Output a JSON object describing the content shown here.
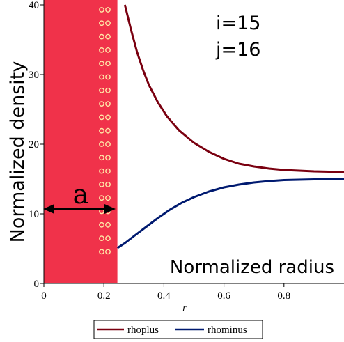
{
  "chart_data": {
    "type": "line",
    "xlabel": "r",
    "ylabel": "Normalized density",
    "xlim": [
      0,
      1
    ],
    "ylim": [
      0,
      40
    ],
    "x_ticks": [
      "0",
      "0.2",
      "0.4",
      "0.6",
      "0.8"
    ],
    "y_ticks": [
      "0",
      "10",
      "20",
      "30",
      "40"
    ],
    "annotations": {
      "i_label": "i=15",
      "j_label": "j=16",
      "radius_label": "Normalized radius",
      "gap_label": "a"
    },
    "shaded_region": {
      "x_from": 0,
      "x_to": 0.245,
      "color": "#f0324a"
    },
    "series": [
      {
        "name": "rhoplus",
        "color": "#7a0010",
        "x": [
          0.27,
          0.29,
          0.31,
          0.33,
          0.35,
          0.38,
          0.41,
          0.45,
          0.5,
          0.55,
          0.6,
          0.65,
          0.7,
          0.75,
          0.8,
          0.85,
          0.9,
          0.95,
          1.0
        ],
        "y": [
          40,
          36.5,
          33.3,
          30.7,
          28.5,
          26.0,
          24.0,
          22.0,
          20.2,
          18.9,
          17.9,
          17.2,
          16.8,
          16.5,
          16.3,
          16.2,
          16.1,
          16.05,
          16.0
        ]
      },
      {
        "name": "rhominus",
        "color": "#001a70",
        "x": [
          0.245,
          0.27,
          0.3,
          0.34,
          0.38,
          0.42,
          0.46,
          0.5,
          0.55,
          0.6,
          0.65,
          0.7,
          0.75,
          0.8,
          0.85,
          0.9,
          0.95,
          1.0
        ],
        "y": [
          5.1,
          5.8,
          6.8,
          8.1,
          9.4,
          10.6,
          11.6,
          12.4,
          13.2,
          13.8,
          14.2,
          14.5,
          14.7,
          14.85,
          14.9,
          14.95,
          15.0,
          15.0
        ]
      }
    ],
    "legend": {
      "position": "bottom",
      "items": [
        "rhoplus",
        "rhominus"
      ]
    }
  }
}
